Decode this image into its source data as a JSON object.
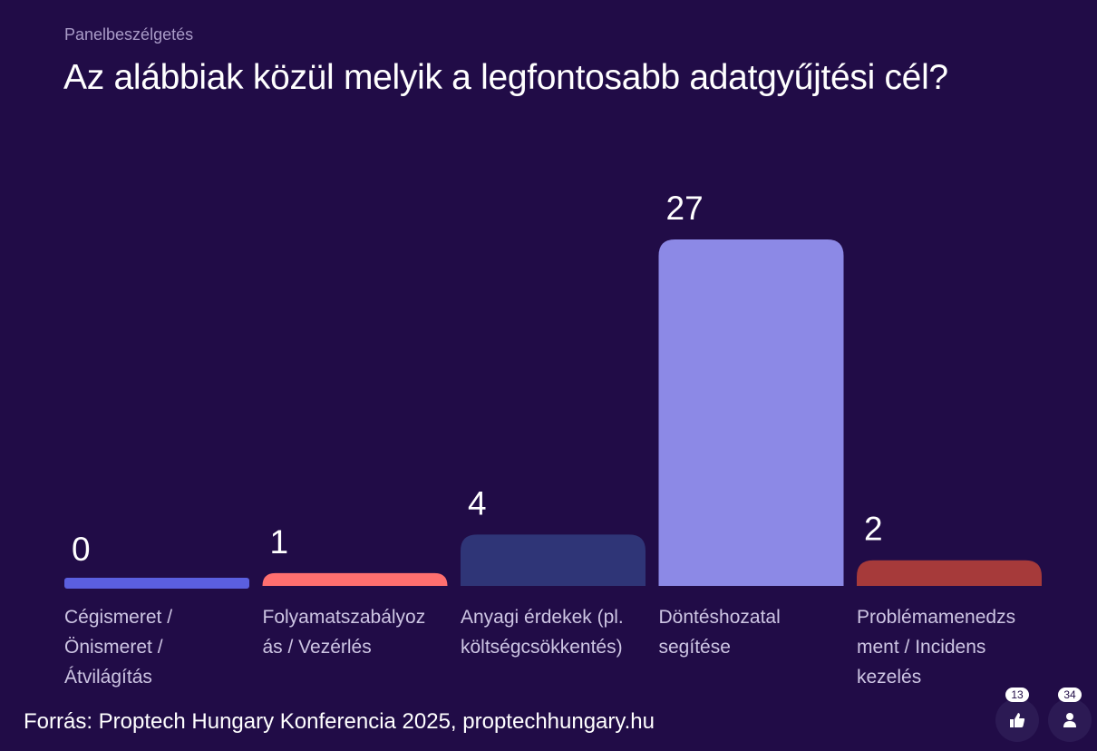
{
  "header": {
    "subtitle": "Panelbeszélgetés",
    "title": "Az alábbiak közül melyik a legfontosabb adatgyűjtési cél?"
  },
  "chart_data": {
    "type": "bar",
    "title": "Az alábbiak közül melyik a legfontosabb adatgyűjtési cél?",
    "categories": [
      "Cégismeret / Önismeret / Átvilágítás",
      "Folyamatszabályozás / Vezérlés",
      "Anyagi érdekek (pl. költségcsökkentés)",
      "Döntéshozatal segítése",
      "Problémamenedzsment / Incidens kezelés"
    ],
    "values": [
      0,
      1,
      4,
      27,
      2
    ],
    "value_labels": [
      "0",
      "1",
      "4",
      "27",
      "2"
    ],
    "colors": [
      "#5b5fe0",
      "#ff6f6f",
      "#2f3577",
      "#8c89e6",
      "#a63a3a"
    ],
    "xlabel": "",
    "ylabel": "",
    "ylim": [
      0,
      27
    ]
  },
  "category_labels": [
    [
      "Cégismeret /",
      "Önismeret /",
      "Átvilágítás"
    ],
    [
      "Folyamatszabályoz",
      "ás / Vezérlés"
    ],
    [
      "Anyagi érdekek (pl.",
      "költségcsökkentés)"
    ],
    [
      "Döntéshozatal",
      "segítése"
    ],
    [
      "Problémamenedzs",
      "ment / Incidens",
      "kezelés"
    ]
  ],
  "footer": {
    "source": "Forrás: Proptech Hungary Konferencia 2025, proptechhungary.hu",
    "likes_count": "13",
    "participants_count": "34",
    "like_icon": "thumbs-up-icon",
    "participants_icon": "person-icon"
  }
}
